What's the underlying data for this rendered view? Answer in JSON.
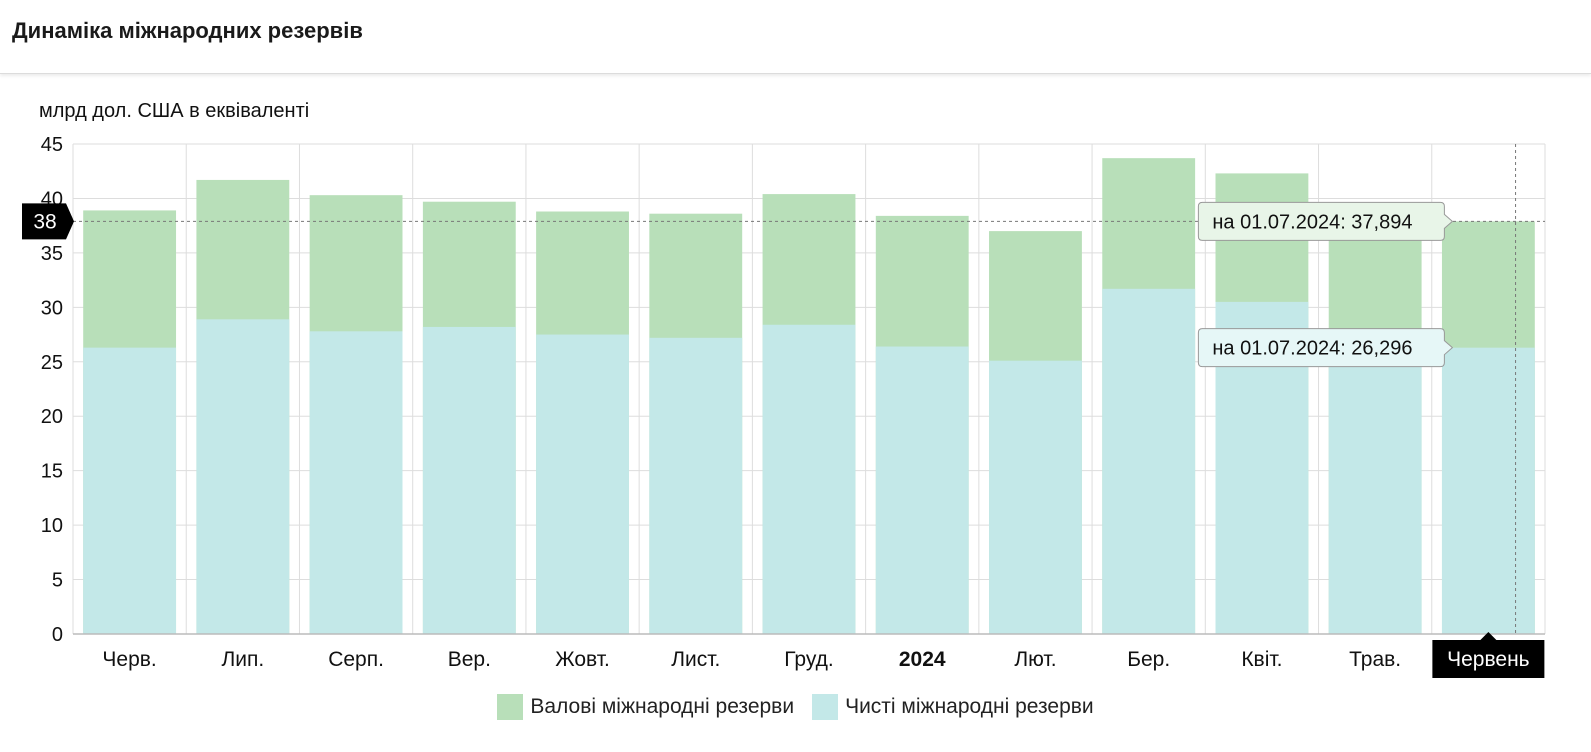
{
  "header": {
    "title": "Динаміка міжнародних резервів"
  },
  "chart_data": {
    "type": "bar",
    "stacked": false,
    "ylabel": "млрд дол. США в еквіваленті",
    "ylim": [
      0,
      45
    ],
    "yticks": [
      0,
      5,
      10,
      15,
      20,
      25,
      30,
      35,
      40,
      45
    ],
    "grid": true,
    "categories": [
      "Черв.",
      "Лип.",
      "Серп.",
      "Вер.",
      "Жовт.",
      "Лист.",
      "Груд.",
      "2024",
      "Лют.",
      "Бер.",
      "Квіт.",
      "Трав.",
      "Червень"
    ],
    "series": [
      {
        "name": "Валові міжнародні резерви",
        "color": "#b8dfb9",
        "values": [
          38.9,
          41.7,
          40.3,
          39.7,
          38.8,
          38.6,
          40.4,
          38.4,
          37.0,
          43.7,
          42.3,
          37.8,
          37.894
        ]
      },
      {
        "name": "Чисті міжнародні резерви",
        "color": "#c3e8e8",
        "values": [
          26.3,
          28.9,
          27.8,
          28.2,
          27.5,
          27.2,
          28.4,
          26.4,
          25.1,
          31.7,
          30.5,
          26.3,
          26.296
        ]
      }
    ],
    "crosshair": {
      "y_label": "38",
      "y_value": 37.894,
      "x_label": "Червень"
    },
    "tooltips": [
      {
        "text": "на 01.07.2024: 37,894",
        "value": 37.894
      },
      {
        "text": "на 01.07.2024: 26,296",
        "value": 26.296
      }
    ],
    "legend_position": "bottom-center"
  },
  "colors": {
    "gross": "#b8dfb9",
    "net": "#c3e8e8",
    "grid": "#dddddd",
    "axis": "#bbbbbb",
    "marker_bg": "#000000"
  }
}
